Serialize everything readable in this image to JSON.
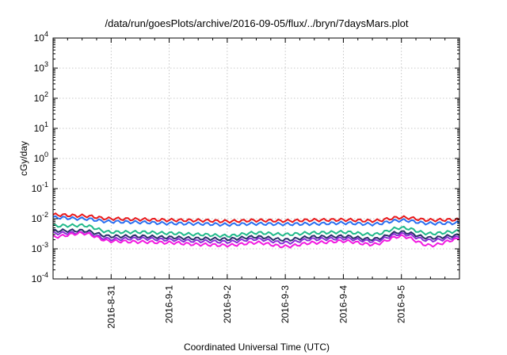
{
  "chart_data": {
    "type": "line",
    "title": "/data/run/goesPlots/archive/2016-09-05/flux/../bryn/7daysMars.plot",
    "xlabel": "Coordinated Universal Time (UTC)",
    "ylabel": "cGy/day",
    "yscale": "log",
    "ylim": [
      0.0001,
      10000
    ],
    "xlim": [
      "2016-08-30T00:00",
      "2016-09-06T00:00"
    ],
    "y_tick_labels": [
      {
        "base": "10",
        "exp": "-4"
      },
      {
        "base": "10",
        "exp": "-3"
      },
      {
        "base": "10",
        "exp": "-2"
      },
      {
        "base": "10",
        "exp": "-1"
      },
      {
        "base": "10",
        "exp": "0"
      },
      {
        "base": "10",
        "exp": "1"
      },
      {
        "base": "10",
        "exp": "2"
      },
      {
        "base": "10",
        "exp": "3"
      },
      {
        "base": "10",
        "exp": "4"
      }
    ],
    "x_tick_labels": [
      "2016-8-31",
      "2016-9-1",
      "2016-9-2",
      "2016-9-3",
      "2016-9-4",
      "2016-9-5"
    ],
    "grid": true,
    "x": [
      "2016-08-30T00:00",
      "2016-08-30T12:00",
      "2016-08-31T00:00",
      "2016-08-31T12:00",
      "2016-09-01T00:00",
      "2016-09-01T12:00",
      "2016-09-02T00:00",
      "2016-09-02T12:00",
      "2016-09-03T00:00",
      "2016-09-03T12:00",
      "2016-09-04T00:00",
      "2016-09-04T12:00",
      "2016-09-05T00:00",
      "2016-09-05T12:00",
      "2016-09-06T00:00"
    ],
    "series": [
      {
        "color": "#e8191c",
        "values": [
          0.0135,
          0.0125,
          0.01,
          0.0095,
          0.009,
          0.0088,
          0.0082,
          0.0088,
          0.0085,
          0.009,
          0.0092,
          0.0085,
          0.011,
          0.009,
          0.0093
        ]
      },
      {
        "color": "#2a6ff0",
        "values": [
          0.011,
          0.01,
          0.008,
          0.0076,
          0.007,
          0.0068,
          0.0064,
          0.0068,
          0.0066,
          0.0068,
          0.0072,
          0.0066,
          0.0088,
          0.007,
          0.0072
        ]
      },
      {
        "color": "#21b98a",
        "values": [
          0.0058,
          0.006,
          0.0036,
          0.0036,
          0.0033,
          0.003,
          0.0027,
          0.0034,
          0.003,
          0.0034,
          0.0036,
          0.003,
          0.005,
          0.0032,
          0.0038
        ]
      },
      {
        "color": "#2a2f6b",
        "values": [
          0.004,
          0.004,
          0.0026,
          0.0026,
          0.0024,
          0.0022,
          0.0021,
          0.0025,
          0.002,
          0.0025,
          0.0026,
          0.0021,
          0.0036,
          0.0023,
          0.0028
        ]
      },
      {
        "color": "#8a2fd6",
        "values": [
          0.0033,
          0.0034,
          0.0021,
          0.0022,
          0.002,
          0.0018,
          0.0017,
          0.0021,
          0.0016,
          0.0021,
          0.0022,
          0.0018,
          0.0031,
          0.0019,
          0.0024
        ]
      },
      {
        "color": "#f21ae0",
        "values": [
          0.0025,
          0.0033,
          0.0018,
          0.0017,
          0.0016,
          0.0014,
          0.0013,
          0.0016,
          0.0012,
          0.0016,
          0.0018,
          0.0014,
          0.0026,
          0.0013,
          0.0021
        ]
      }
    ]
  }
}
